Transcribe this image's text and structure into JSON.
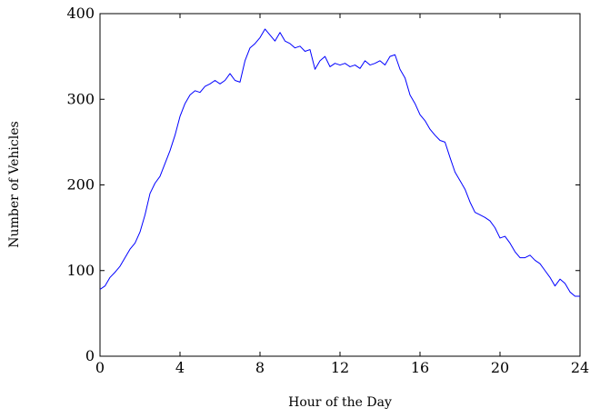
{
  "chart_data": {
    "type": "line",
    "xlabel": "Hour of the Day",
    "ylabel": "Number of Vehicles",
    "xlim": [
      0,
      24
    ],
    "ylim": [
      0,
      400
    ],
    "xticks": [
      0,
      4,
      8,
      12,
      16,
      20,
      24
    ],
    "yticks": [
      0,
      100,
      200,
      300,
      400
    ],
    "grid": false,
    "series": [
      {
        "color": "#0000ff",
        "x": [
          0,
          0.25,
          0.5,
          0.75,
          1,
          1.25,
          1.5,
          1.75,
          2,
          2.25,
          2.5,
          2.75,
          3,
          3.25,
          3.5,
          3.75,
          4,
          4.25,
          4.5,
          4.75,
          5,
          5.25,
          5.5,
          5.75,
          6,
          6.25,
          6.5,
          6.75,
          7,
          7.25,
          7.5,
          7.75,
          8,
          8.25,
          8.5,
          8.75,
          9,
          9.25,
          9.5,
          9.75,
          10,
          10.25,
          10.5,
          10.75,
          11,
          11.25,
          11.5,
          11.75,
          12,
          12.25,
          12.5,
          12.75,
          13,
          13.25,
          13.5,
          13.75,
          14,
          14.25,
          14.5,
          14.75,
          15,
          15.25,
          15.5,
          15.75,
          16,
          16.25,
          16.5,
          16.75,
          17,
          17.25,
          17.5,
          17.75,
          18,
          18.25,
          18.5,
          18.75,
          19,
          19.25,
          19.5,
          19.75,
          20,
          20.25,
          20.5,
          20.75,
          21,
          21.25,
          21.5,
          21.75,
          22,
          22.25,
          22.5,
          22.75,
          23,
          23.25,
          23.5,
          23.75,
          24
        ],
        "y": [
          78,
          82,
          92,
          98,
          105,
          115,
          125,
          132,
          145,
          165,
          190,
          202,
          210,
          225,
          240,
          258,
          280,
          295,
          305,
          310,
          308,
          315,
          318,
          322,
          318,
          322,
          330,
          322,
          320,
          345,
          360,
          365,
          372,
          382,
          375,
          368,
          378,
          368,
          365,
          360,
          362,
          356,
          358,
          335,
          345,
          350,
          338,
          342,
          340,
          342,
          338,
          340,
          336,
          345,
          340,
          342,
          345,
          340,
          350,
          352,
          335,
          325,
          305,
          295,
          282,
          275,
          265,
          258,
          252,
          250,
          232,
          215,
          205,
          195,
          180,
          168,
          165,
          162,
          158,
          150,
          138,
          140,
          132,
          122,
          115,
          115,
          118,
          112,
          108,
          100,
          92,
          82,
          90,
          85,
          75,
          70,
          70
        ]
      }
    ]
  }
}
